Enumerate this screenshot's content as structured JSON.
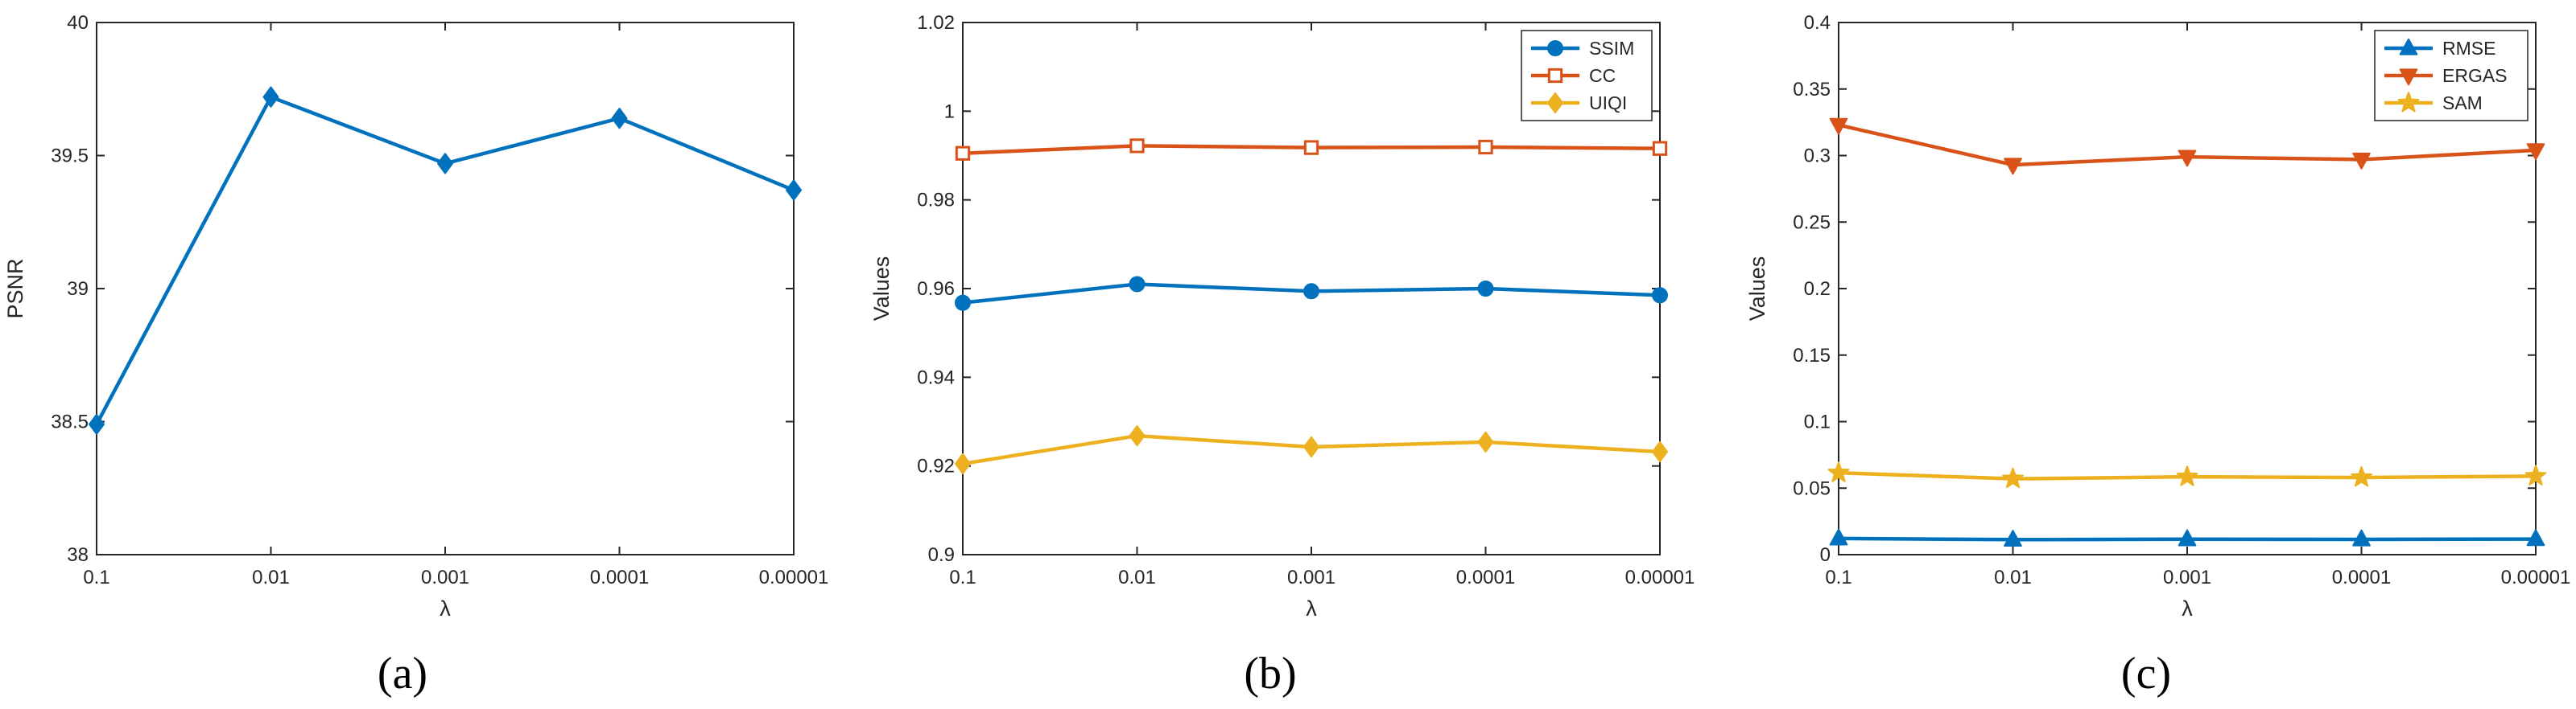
{
  "chart_data": [
    {
      "type": "line",
      "caption": "(a)",
      "xlabel": "λ",
      "ylabel": "PSNR",
      "categories": [
        "0.1",
        "0.01",
        "0.001",
        "0.0001",
        "0.00001"
      ],
      "ylim": [
        38,
        40
      ],
      "yticks": [
        "38",
        "38.5",
        "39",
        "39.5",
        "40"
      ],
      "yticks_values": [
        38,
        38.5,
        39,
        39.5,
        40
      ],
      "grid": false,
      "legend": null,
      "series": [
        {
          "name": "PSNR",
          "color": "#0072BD",
          "marker": "diamond",
          "values": [
            38.49,
            39.72,
            39.47,
            39.64,
            39.37
          ]
        }
      ]
    },
    {
      "type": "line",
      "caption": "(b)",
      "xlabel": "λ",
      "ylabel": "Values",
      "categories": [
        "0.1",
        "0.01",
        "0.001",
        "0.0001",
        "0.00001"
      ],
      "ylim": [
        0.9,
        1.02
      ],
      "yticks": [
        "0.9",
        "0.92",
        "0.94",
        "0.96",
        "0.98",
        "1",
        "1.02"
      ],
      "yticks_values": [
        0.9,
        0.92,
        0.94,
        0.96,
        0.98,
        1.0,
        1.02
      ],
      "grid": false,
      "legend": "top-right",
      "series": [
        {
          "name": "SSIM",
          "color": "#0072BD",
          "marker": "circle",
          "values": [
            0.9568,
            0.961,
            0.9594,
            0.96,
            0.9585
          ]
        },
        {
          "name": "CC",
          "color": "#D95319",
          "marker": "square",
          "values": [
            0.9905,
            0.9922,
            0.9918,
            0.9919,
            0.9916
          ]
        },
        {
          "name": "UIQI",
          "color": "#EDB120",
          "marker": "diamond",
          "values": [
            0.9205,
            0.9268,
            0.9243,
            0.9254,
            0.9232
          ]
        }
      ]
    },
    {
      "type": "line",
      "caption": "(c)",
      "xlabel": "λ",
      "ylabel": "Values",
      "categories": [
        "0.1",
        "0.01",
        "0.001",
        "0.0001",
        "0.00001"
      ],
      "ylim": [
        0,
        0.4
      ],
      "yticks": [
        "0",
        "0.05",
        "0.1",
        "0.15",
        "0.2",
        "0.25",
        "0.3",
        "0.35",
        "0.4"
      ],
      "yticks_values": [
        0,
        0.05,
        0.1,
        0.15,
        0.2,
        0.25,
        0.3,
        0.35,
        0.4
      ],
      "grid": false,
      "legend": "top-right",
      "series": [
        {
          "name": "RMSE",
          "color": "#0072BD",
          "marker": "triangle-up",
          "values": [
            0.0122,
            0.0113,
            0.0116,
            0.0115,
            0.0117
          ]
        },
        {
          "name": "ERGAS",
          "color": "#D95319",
          "marker": "triangle-down",
          "values": [
            0.323,
            0.293,
            0.299,
            0.297,
            0.304
          ]
        },
        {
          "name": "SAM",
          "color": "#EDB120",
          "marker": "star",
          "values": [
            0.0615,
            0.057,
            0.0585,
            0.058,
            0.059
          ]
        }
      ]
    }
  ]
}
